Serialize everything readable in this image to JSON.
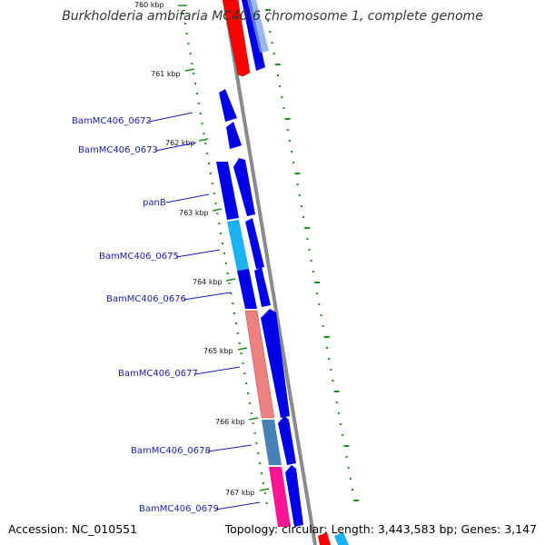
{
  "title": "Burkholderia ambifaria MC40-6 chromosome 1, complete genome",
  "footer": {
    "accession": "Accession: NC_010551",
    "summary": "Topology: circular; Length: 3,443,583 bp; Genes: 3,147"
  },
  "colors": {
    "backbone": "#8a8a8a",
    "gc_dots": "#1e8c1e",
    "label_text": "#1a1ab0",
    "blue": "#0000e6",
    "red": "#ff0000",
    "cyan": "#1ab2f0",
    "salmon": "#ee8080",
    "steel": "#4682b4",
    "magenta": "#ff1493"
  },
  "ticks": [
    {
      "label": "760 kbp"
    },
    {
      "label": "761 kbp"
    },
    {
      "label": "762 kbp"
    },
    {
      "label": "763 kbp"
    },
    {
      "label": "764 kbp"
    },
    {
      "label": "765 kbp"
    },
    {
      "label": "766 kbp"
    },
    {
      "label": "767 kbp"
    }
  ],
  "gene_labels": [
    {
      "text": "BamMC406_0672"
    },
    {
      "text": "BamMC406_0673"
    },
    {
      "text": "panB"
    },
    {
      "text": "BamMC406_0675"
    },
    {
      "text": "BamMC406_0676"
    },
    {
      "text": "BamMC406_0677"
    },
    {
      "text": "BamMC406_0678"
    },
    {
      "text": "BamMC406_0679"
    }
  ]
}
